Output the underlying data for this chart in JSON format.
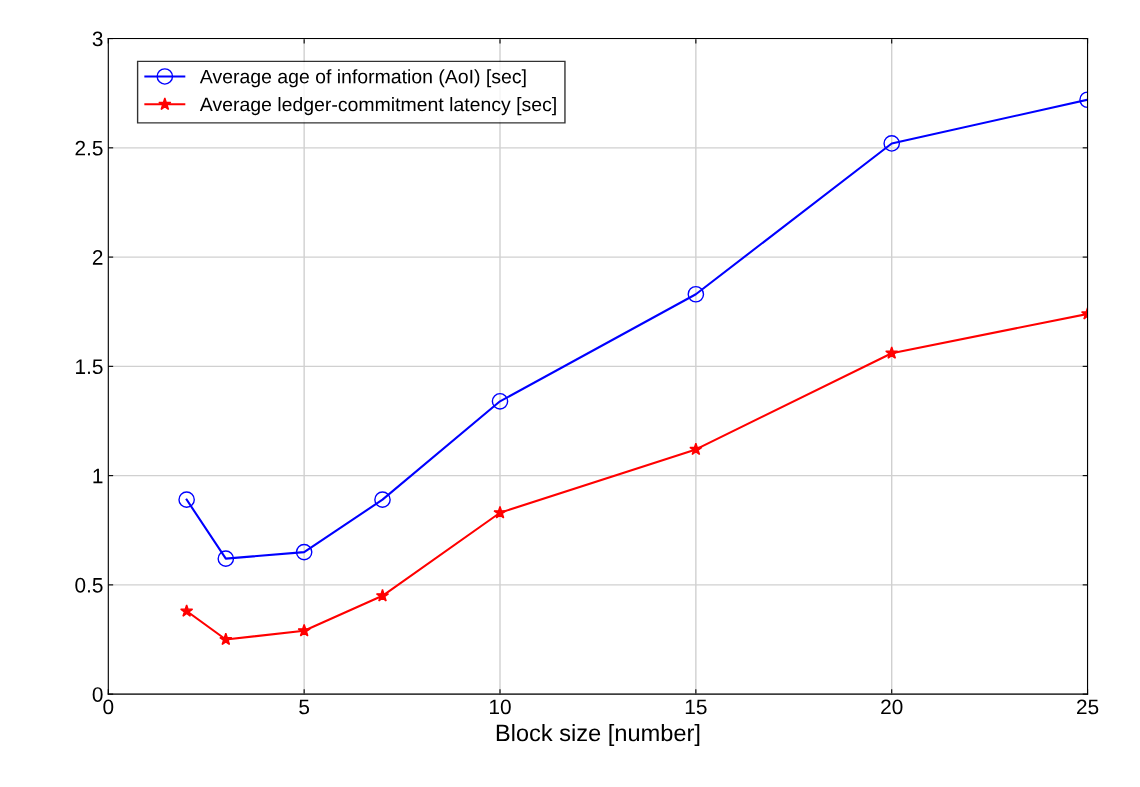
{
  "chart_data": {
    "type": "line",
    "xlabel": "Block size [number]",
    "x": [
      2,
      3,
      5,
      7,
      10,
      15,
      20,
      25
    ],
    "series": [
      {
        "name": "Average age of information (AoI) [sec]",
        "color": "#0000ff",
        "marker": "circle",
        "values": [
          0.89,
          0.62,
          0.65,
          0.89,
          1.34,
          1.83,
          2.52,
          2.72
        ]
      },
      {
        "name": "Average ledger-commitment latency [sec]",
        "color": "#ff0000",
        "marker": "star",
        "values": [
          0.38,
          0.25,
          0.29,
          0.45,
          0.83,
          1.12,
          1.56,
          1.74
        ]
      }
    ],
    "xlim": [
      0,
      25
    ],
    "xticks": [
      0,
      5,
      10,
      15,
      20,
      25
    ],
    "ylim": [
      0,
      3
    ],
    "yticks": [
      0,
      0.5,
      1,
      1.5,
      2,
      2.5,
      3
    ],
    "grid": true,
    "legend": "top left",
    "line_style": "solid"
  }
}
